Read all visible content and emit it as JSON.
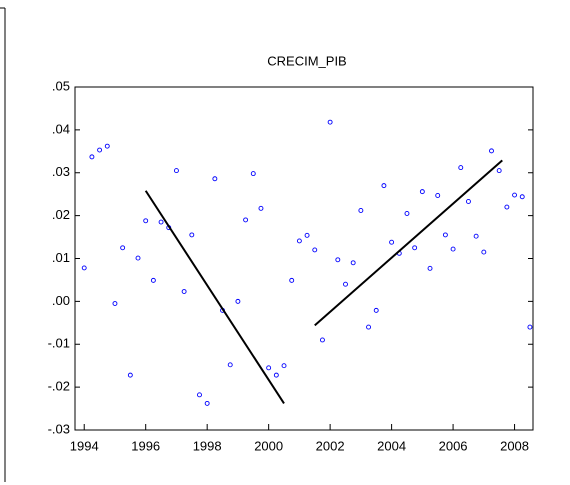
{
  "chart_data": {
    "type": "scatter",
    "title": "CRECIM_PIB",
    "x": [
      1994,
      1994.25,
      1994.5,
      1994.75,
      1995,
      1995.25,
      1995.5,
      1995.75,
      1996,
      1996.25,
      1996.5,
      1996.75,
      1997,
      1997.25,
      1997.5,
      1997.75,
      1998,
      1998.25,
      1998.5,
      1998.75,
      1999,
      1999.25,
      1999.5,
      1999.75,
      2000,
      2000.25,
      2000.5,
      2000.75,
      2001,
      2001.25,
      2001.5,
      2001.75,
      2002,
      2002.25,
      2002.5,
      2002.75,
      2003,
      2003.25,
      2003.5,
      2003.75,
      2004,
      2004.25,
      2004.5,
      2004.75,
      2005,
      2005.25,
      2005.5,
      2005.75,
      2006,
      2006.25,
      2006.5,
      2006.75,
      2007,
      2007.25,
      2007.5,
      2007.75,
      2008,
      2008.25,
      2008.5
    ],
    "series": [
      {
        "type": "scatter",
        "color": "#0000ff",
        "values": [
          0.0078,
          0.0337,
          0.0353,
          0.0362,
          -0.0005,
          0.0125,
          -0.0172,
          0.0101,
          0.0188,
          0.0049,
          0.0185,
          0.0172,
          0.0305,
          0.0023,
          0.0155,
          -0.0218,
          -0.0238,
          0.0286,
          -0.0021,
          -0.0148,
          0.0,
          0.019,
          0.0298,
          0.0217,
          -0.0155,
          -0.0172,
          -0.015,
          0.0049,
          0.0141,
          0.0154,
          0.012,
          -0.009,
          0.0418,
          0.0097,
          0.004,
          0.009,
          0.0212,
          -0.006,
          -0.0021,
          0.027,
          0.0138,
          0.0112,
          0.0205,
          0.0125,
          0.0256,
          0.0077,
          0.0247,
          0.0155,
          0.0122,
          0.0312,
          0.0233,
          0.0152,
          0.0115,
          0.0351,
          0.0305,
          0.022,
          0.0248,
          0.0244,
          -0.006
        ]
      },
      {
        "type": "line",
        "color": "#000000",
        "x": [
          1996,
          2000.5
        ],
        "values": [
          0.0258,
          -0.0238
        ]
      },
      {
        "type": "line",
        "color": "#000000",
        "x": [
          2001.5,
          2007.6
        ],
        "values": [
          -0.0056,
          0.0329
        ]
      }
    ],
    "xlim": [
      1993.7,
      2008.6
    ],
    "xticks": [
      1994,
      1996,
      1998,
      2000,
      2002,
      2004,
      2006,
      2008
    ],
    "ylim": [
      -0.03,
      0.05
    ],
    "yticks": [
      {
        "value": -0.03,
        "label": "-.03"
      },
      {
        "value": -0.02,
        "label": "-.02"
      },
      {
        "value": -0.01,
        "label": "-.01"
      },
      {
        "value": 0,
        "label": ".00"
      },
      {
        "value": 0.01,
        "label": ".01"
      },
      {
        "value": 0.02,
        "label": ".02"
      },
      {
        "value": 0.03,
        "label": ".03"
      },
      {
        "value": 0.04,
        "label": ".04"
      },
      {
        "value": 0.05,
        "label": ".05"
      }
    ]
  }
}
